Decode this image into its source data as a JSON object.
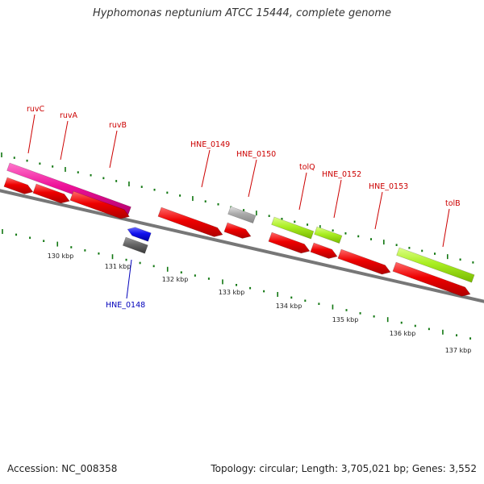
{
  "title": "Hyphomonas neptunium ATCC 15444, complete genome",
  "footer": {
    "accession": "Accession: NC_008358",
    "summary": "Topology: circular; Length: 3,705,021 bp; Genes: 3,552"
  },
  "colors": {
    "cds": "#ee0000",
    "gene_magenta": "#ee1199",
    "gene_lime": "#aaee22",
    "rna_blue": "#1111ee",
    "pseudo_gray": "#aaaaaa",
    "dark_gray": "#666666",
    "backbone": "#777777",
    "ticks": "#117711",
    "label_red": "#cc0000",
    "label_blue": "#0000bb"
  },
  "scale": {
    "tick_labels": [
      "130 kbp",
      "131 kbp",
      "132 kbp",
      "133 kbp",
      "134 kbp",
      "135 kbp",
      "136 kbp",
      "137 kbp"
    ]
  },
  "gene_labels": [
    {
      "text": "ruvC",
      "color": "red"
    },
    {
      "text": "ruvA",
      "color": "red"
    },
    {
      "text": "ruvB",
      "color": "red"
    },
    {
      "text": "HNE_0149",
      "color": "red"
    },
    {
      "text": "HNE_0150",
      "color": "red"
    },
    {
      "text": "tolQ",
      "color": "red"
    },
    {
      "text": "HNE_0152",
      "color": "red"
    },
    {
      "text": "HNE_0153",
      "color": "red"
    },
    {
      "text": "tolB",
      "color": "red"
    },
    {
      "text": "HNE_0148",
      "color": "blue"
    }
  ]
}
